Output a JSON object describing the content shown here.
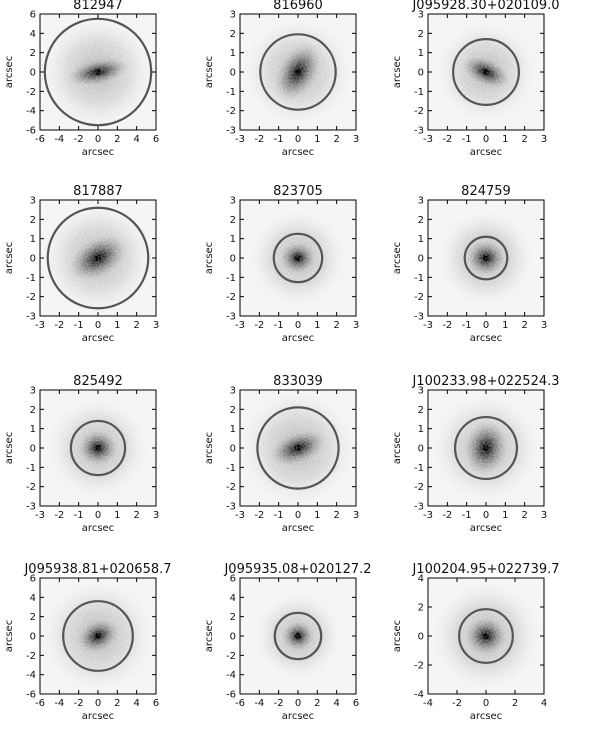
{
  "figure": {
    "x_axis_label": "arcsec",
    "y_axis_label": "arcsec",
    "circle_color": "#555555",
    "background": "#ffffff",
    "panels": [
      {
        "title": "812947",
        "range": 6,
        "ticks": [
          -6,
          -4,
          -2,
          0,
          2,
          4,
          6
        ],
        "circle_radius": 5.5,
        "galaxy": {
          "rx": 3.2,
          "ry": 1.3,
          "angle": -12,
          "diffuse": 5.8
        }
      },
      {
        "title": "816960",
        "range": 3,
        "ticks": [
          -3,
          -2,
          -1,
          0,
          1,
          2,
          3
        ],
        "circle_radius": 1.95,
        "galaxy": {
          "rx": 1.0,
          "ry": 1.6,
          "angle": 30,
          "diffuse": 2.8
        }
      },
      {
        "title": "J095928.30+020109.0",
        "range": 3,
        "ticks": [
          -3,
          -2,
          -1,
          0,
          1,
          2,
          3
        ],
        "circle_radius": 1.7,
        "galaxy": {
          "rx": 1.3,
          "ry": 0.7,
          "angle": 25,
          "diffuse": 2.6
        }
      },
      {
        "title": "817887",
        "range": 3,
        "ticks": [
          -3,
          -2,
          -1,
          0,
          1,
          2,
          3
        ],
        "circle_radius": 2.6,
        "galaxy": {
          "rx": 1.6,
          "ry": 1.0,
          "angle": -30,
          "diffuse": 2.9
        }
      },
      {
        "title": "823705",
        "range": 3,
        "ticks": [
          -3,
          -2,
          -1,
          0,
          1,
          2,
          3
        ],
        "circle_radius": 1.25,
        "galaxy": {
          "rx": 0.9,
          "ry": 0.8,
          "angle": 0,
          "diffuse": 2.5
        }
      },
      {
        "title": "824759",
        "range": 3,
        "ticks": [
          -3,
          -2,
          -1,
          0,
          1,
          2,
          3
        ],
        "circle_radius": 1.1,
        "galaxy": {
          "rx": 1.0,
          "ry": 0.9,
          "angle": 0,
          "diffuse": 2.5
        }
      },
      {
        "title": "825492",
        "range": 3,
        "ticks": [
          -3,
          -2,
          -1,
          0,
          1,
          2,
          3
        ],
        "circle_radius": 1.4,
        "galaxy": {
          "rx": 1.0,
          "ry": 0.9,
          "angle": 0,
          "diffuse": 2.6
        }
      },
      {
        "title": "833039",
        "range": 3,
        "ticks": [
          -3,
          -2,
          -1,
          0,
          1,
          2,
          3
        ],
        "circle_radius": 2.1,
        "galaxy": {
          "rx": 1.5,
          "ry": 0.8,
          "angle": -20,
          "diffuse": 3.0
        }
      },
      {
        "title": "J100233.98+022524.3",
        "range": 3,
        "ticks": [
          -3,
          -2,
          -1,
          0,
          1,
          2,
          3
        ],
        "circle_radius": 1.6,
        "galaxy": {
          "rx": 1.1,
          "ry": 1.4,
          "angle": 10,
          "diffuse": 2.8
        }
      },
      {
        "title": "J095938.81+020658.7",
        "range": 6,
        "ticks": [
          -6,
          -4,
          -2,
          0,
          2,
          4,
          6
        ],
        "circle_radius": 3.6,
        "galaxy": {
          "rx": 2.2,
          "ry": 1.6,
          "angle": -25,
          "diffuse": 5.8
        }
      },
      {
        "title": "J095935.08+020127.2",
        "range": 6,
        "ticks": [
          -6,
          -4,
          -2,
          0,
          2,
          4,
          6
        ],
        "circle_radius": 2.4,
        "galaxy": {
          "rx": 1.6,
          "ry": 1.5,
          "angle": 0,
          "diffuse": 4.5
        }
      },
      {
        "title": "J100204.95+022739.7",
        "range": 4,
        "ticks": [
          -4,
          -2,
          0,
          2,
          4
        ],
        "circle_radius": 1.85,
        "galaxy": {
          "rx": 1.4,
          "ry": 1.3,
          "angle": 0,
          "diffuse": 3.8
        }
      }
    ]
  }
}
